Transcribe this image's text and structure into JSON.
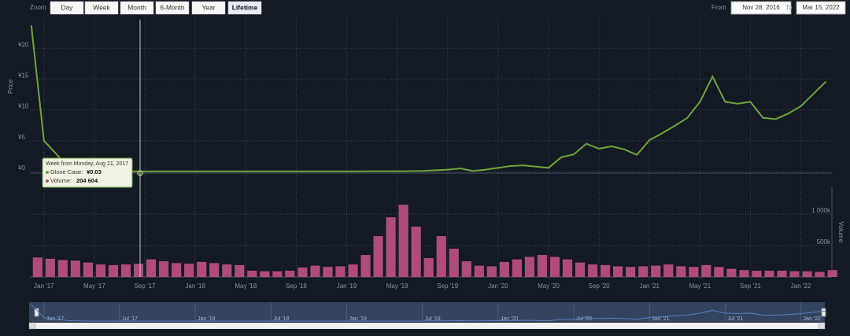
{
  "toolbar": {
    "zoom_label": "Zoom",
    "buttons": [
      "Day",
      "Week",
      "Month",
      "6-Month",
      "Year",
      "Lifetime"
    ],
    "active": "Lifetime",
    "from_label": "From",
    "from": "Nov 28, 2016",
    "to_label": "To",
    "to": "Mar 15, 2022"
  },
  "tooltip": {
    "header": "Week from Monday, Aug 21, 2017",
    "items": [
      {
        "label": "Glove Case:",
        "value": "¥0.03"
      },
      {
        "label": "Volume:",
        "value": "204 604"
      }
    ]
  },
  "chart_data": {
    "type": "stock",
    "xlim": [
      "2016-11-28",
      "2022-03-15"
    ],
    "xticks": [
      {
        "value": "2017-01",
        "label": "Jan '17"
      },
      {
        "value": "2017-05",
        "label": "May '17"
      },
      {
        "value": "2017-09",
        "label": "Sep '17"
      },
      {
        "value": "2018-01",
        "label": "Jan '18"
      },
      {
        "value": "2018-05",
        "label": "May '18"
      },
      {
        "value": "2018-09",
        "label": "Sep '18"
      },
      {
        "value": "2019-01",
        "label": "Jan '19"
      },
      {
        "value": "2019-05",
        "label": "May '19"
      },
      {
        "value": "2019-09",
        "label": "Sep '19"
      },
      {
        "value": "2020-01",
        "label": "Jan '20"
      },
      {
        "value": "2020-05",
        "label": "May '20"
      },
      {
        "value": "2020-09",
        "label": "Sep '20"
      },
      {
        "value": "2021-01",
        "label": "Jan '21"
      },
      {
        "value": "2021-05",
        "label": "May '21"
      },
      {
        "value": "2021-09",
        "label": "Sep '21"
      },
      {
        "value": "2022-01",
        "label": "Jan '22"
      }
    ],
    "navigator_xticks": [
      {
        "value": "2017-01",
        "label": "Jan '17"
      },
      {
        "value": "2017-07",
        "label": "Jul '17"
      },
      {
        "value": "2018-01",
        "label": "Jan '18"
      },
      {
        "value": "2018-07",
        "label": "Jul '18"
      },
      {
        "value": "2019-01",
        "label": "Jan '19"
      },
      {
        "value": "2019-07",
        "label": "Jul '19"
      },
      {
        "value": "2020-01",
        "label": "Jan '20"
      },
      {
        "value": "2020-07",
        "label": "Jul '20"
      },
      {
        "value": "2021-01",
        "label": "Jan '21"
      },
      {
        "value": "2021-07",
        "label": "Jul '21"
      },
      {
        "value": "2022-01",
        "label": "Jan '22"
      }
    ],
    "ylabel": "Price",
    "y2label": "Volume",
    "ylim": [
      0,
      25
    ],
    "yticks": [
      {
        "value": 0,
        "label": "¥0"
      },
      {
        "value": 5,
        "label": "¥5"
      },
      {
        "value": 10,
        "label": "¥10"
      },
      {
        "value": 15,
        "label": "¥15"
      },
      {
        "value": 20,
        "label": "¥20"
      }
    ],
    "y2lim": [
      0,
      1440000
    ],
    "y2ticks": [
      {
        "value": 500000,
        "label": "500k"
      },
      {
        "value": 1000000,
        "label": "1 000k"
      }
    ],
    "grid": true,
    "x": [
      "2016-12",
      "2017-01",
      "2017-02",
      "2017-03",
      "2017-04",
      "2017-05",
      "2017-06",
      "2017-07",
      "2017-08",
      "2017-09",
      "2017-10",
      "2017-11",
      "2017-12",
      "2018-01",
      "2018-02",
      "2018-03",
      "2018-04",
      "2018-05",
      "2018-06",
      "2018-07",
      "2018-08",
      "2018-09",
      "2018-10",
      "2018-11",
      "2018-12",
      "2019-01",
      "2019-02",
      "2019-03",
      "2019-04",
      "2019-05",
      "2019-06",
      "2019-07",
      "2019-08",
      "2019-09",
      "2019-10",
      "2019-11",
      "2019-12",
      "2020-01",
      "2020-02",
      "2020-03",
      "2020-04",
      "2020-05",
      "2020-06",
      "2020-07",
      "2020-08",
      "2020-09",
      "2020-10",
      "2020-11",
      "2020-12",
      "2021-01",
      "2021-02",
      "2021-03",
      "2021-04",
      "2021-05",
      "2021-06",
      "2021-07",
      "2021-08",
      "2021-09",
      "2021-10",
      "2021-11",
      "2021-12",
      "2022-01",
      "2022-02",
      "2022-03"
    ],
    "series": [
      {
        "name": "Glove Case",
        "type": "line",
        "color": "#72a33c",
        "axis": "y",
        "values": [
          23.7,
          5,
          2.8,
          0.5,
          0.1,
          0.03,
          0.03,
          0.03,
          0.03,
          0.03,
          0.03,
          0.03,
          0.03,
          0.03,
          0.03,
          0.03,
          0.03,
          0.03,
          0.03,
          0.03,
          0.03,
          0.03,
          0.03,
          0.03,
          0.03,
          0.03,
          0.03,
          0.04,
          0.05,
          0.05,
          0.06,
          0.1,
          0.2,
          0.3,
          0.5,
          0.1,
          0.3,
          0.6,
          0.9,
          1.0,
          0.8,
          0.6,
          2.3,
          2.8,
          4.5,
          3.7,
          4.1,
          3.6,
          2.7,
          5.1,
          6.2,
          7.4,
          8.7,
          11.3,
          15.4,
          11.3,
          11,
          11.3,
          8.7,
          8.5,
          9.4,
          10.6,
          12.6,
          14.6
        ]
      },
      {
        "name": "Volume",
        "type": "bar",
        "color": "#b04c7a",
        "axis": "y2",
        "values": [
          310000,
          290000,
          270000,
          260000,
          230000,
          200000,
          190000,
          200000,
          210000,
          280000,
          250000,
          220000,
          210000,
          240000,
          220000,
          200000,
          190000,
          100000,
          90000,
          90000,
          100000,
          150000,
          180000,
          160000,
          170000,
          200000,
          350000,
          650000,
          950000,
          1150000,
          800000,
          300000,
          650000,
          450000,
          250000,
          180000,
          170000,
          240000,
          280000,
          320000,
          350000,
          320000,
          280000,
          230000,
          200000,
          190000,
          170000,
          160000,
          170000,
          180000,
          200000,
          170000,
          160000,
          190000,
          160000,
          130000,
          110000,
          100000,
          100000,
          100000,
          90000,
          90000,
          80000,
          110000
        ]
      }
    ]
  }
}
